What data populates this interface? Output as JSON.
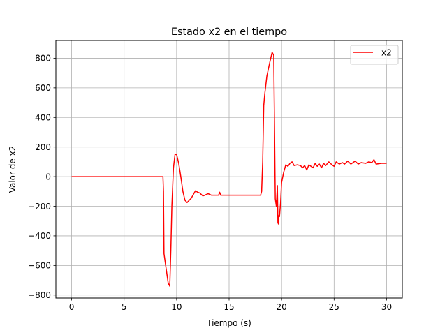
{
  "chart_data": {
    "type": "line",
    "title": "Estado x2 en el tiempo",
    "xlabel": "Tiempo (s)",
    "ylabel": "Valor de x2",
    "xlim": [
      -1.5,
      31.5
    ],
    "ylim": [
      -820,
      920
    ],
    "x_ticks": [
      0,
      5,
      10,
      15,
      20,
      25,
      30
    ],
    "x_tick_labels": [
      "0",
      "5",
      "10",
      "15",
      "20",
      "25",
      "30"
    ],
    "y_ticks": [
      -800,
      -600,
      -400,
      -200,
      0,
      200,
      400,
      600,
      800
    ],
    "y_tick_labels": [
      "−800",
      "−600",
      "−400",
      "−200",
      "0",
      "200",
      "400",
      "600",
      "800"
    ],
    "grid": true,
    "legend_position": "top-right",
    "series": [
      {
        "name": "x2",
        "color": "#ff0000",
        "x": [
          0,
          2,
          4,
          6,
          8,
          8.7,
          8.75,
          8.8,
          9.0,
          9.2,
          9.35,
          9.45,
          9.55,
          9.7,
          9.85,
          10.0,
          10.2,
          10.4,
          10.6,
          10.8,
          11.0,
          11.2,
          11.4,
          11.6,
          11.8,
          12.0,
          12.2,
          12.5,
          12.7,
          13.0,
          13.3,
          13.6,
          14.0,
          14.1,
          14.2,
          14.3,
          15,
          16,
          17,
          18,
          18.1,
          18.2,
          18.3,
          18.4,
          18.6,
          18.9,
          19.1,
          19.25,
          19.3,
          19.4,
          19.5,
          19.6,
          19.65,
          19.7,
          19.75,
          19.8,
          19.9,
          20.0,
          20.2,
          20.4,
          20.6,
          20.8,
          21.0,
          21.2,
          21.5,
          21.8,
          22.0,
          22.2,
          22.4,
          22.6,
          22.8,
          23.0,
          23.2,
          23.4,
          23.6,
          23.8,
          24.0,
          24.2,
          24.5,
          24.8,
          25.0,
          25.2,
          25.5,
          25.8,
          26.0,
          26.3,
          26.6,
          27.0,
          27.3,
          27.6,
          28.0,
          28.3,
          28.6,
          28.8,
          29.0,
          29.5,
          30.0
        ],
        "y": [
          0,
          0,
          0,
          0,
          0,
          0,
          -100,
          -520,
          -620,
          -720,
          -740,
          -500,
          -200,
          60,
          150,
          150,
          90,
          0,
          -100,
          -160,
          -175,
          -160,
          -145,
          -120,
          -95,
          -105,
          -110,
          -130,
          -125,
          -115,
          -125,
          -125,
          -125,
          -105,
          -125,
          -125,
          -125,
          -125,
          -125,
          -125,
          -100,
          100,
          480,
          560,
          680,
          780,
          840,
          820,
          500,
          -150,
          -200,
          -60,
          -310,
          -320,
          -260,
          -270,
          -180,
          -40,
          30,
          80,
          70,
          90,
          100,
          75,
          80,
          75,
          60,
          75,
          45,
          80,
          70,
          60,
          90,
          70,
          85,
          60,
          90,
          75,
          100,
          80,
          70,
          100,
          85,
          95,
          85,
          105,
          85,
          105,
          85,
          95,
          90,
          100,
          95,
          115,
          85,
          90,
          90
        ]
      }
    ]
  }
}
